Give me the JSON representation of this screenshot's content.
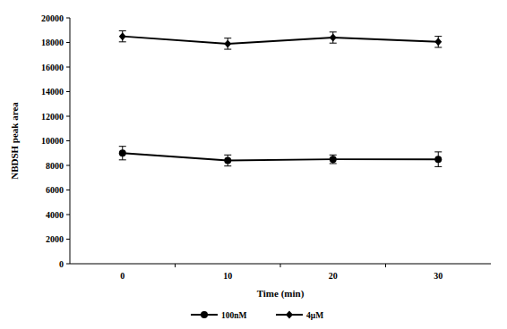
{
  "chart_data": {
    "type": "line",
    "x_label": "Time (min)",
    "y_label": "NBDSH peak area",
    "categories": [
      "0",
      "10",
      "20",
      "30"
    ],
    "ylim": [
      0,
      20000
    ],
    "yticks": [
      0,
      2000,
      4000,
      6000,
      8000,
      10000,
      12000,
      14000,
      16000,
      18000,
      20000
    ],
    "grid": false,
    "legend": "bottom",
    "series": [
      {
        "name": "100nM",
        "color": "#000000",
        "marker": "circle",
        "line_style": "solid",
        "values": [
          9000,
          8400,
          8500,
          8500
        ],
        "errors": [
          550,
          450,
          350,
          600
        ]
      },
      {
        "name": "4μM",
        "color": "#000000",
        "marker": "diamond",
        "line_style": "solid",
        "values": [
          18500,
          17900,
          18400,
          18050
        ],
        "errors": [
          450,
          450,
          450,
          450
        ]
      }
    ]
  }
}
